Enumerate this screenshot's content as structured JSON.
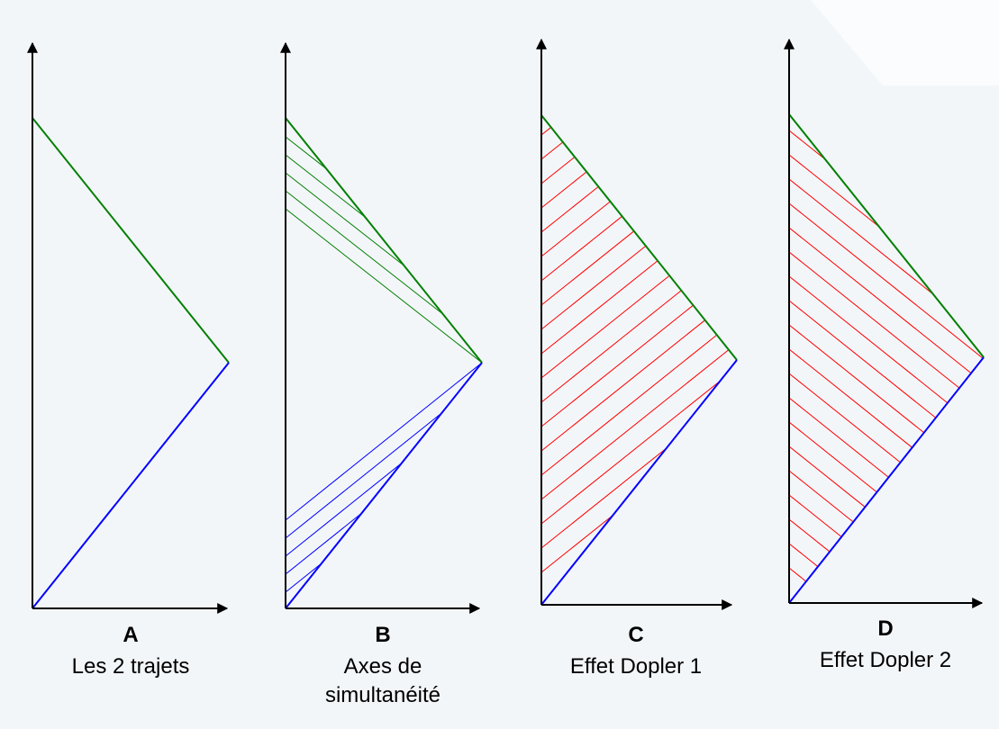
{
  "panels": [
    {
      "letter": "A",
      "caption": [
        "Les 2 trajets"
      ]
    },
    {
      "letter": "B",
      "caption": [
        "Axes de",
        "simultanéité"
      ]
    },
    {
      "letter": "C",
      "caption": [
        "Effet Dopler 1"
      ]
    },
    {
      "letter": "D",
      "caption": [
        "Effet Dopler 2"
      ]
    }
  ]
}
